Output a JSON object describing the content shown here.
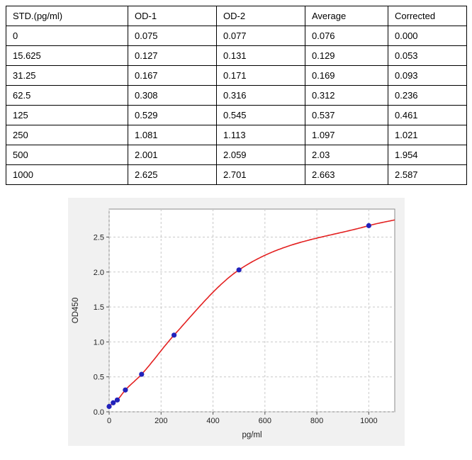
{
  "table": {
    "headers": [
      "STD.(pg/ml)",
      "OD-1",
      "OD-2",
      "Average",
      "Corrected"
    ],
    "rows": [
      [
        "0",
        "0.075",
        "0.077",
        "0.076",
        "0.000"
      ],
      [
        "15.625",
        "0.127",
        "0.131",
        "0.129",
        "0.053"
      ],
      [
        "31.25",
        "0.167",
        "0.171",
        "0.169",
        "0.093"
      ],
      [
        "62.5",
        "0.308",
        "0.316",
        "0.312",
        "0.236"
      ],
      [
        "125",
        "0.529",
        "0.545",
        "0.537",
        "0.461"
      ],
      [
        "250",
        "1.081",
        "1.113",
        "1.097",
        "1.021"
      ],
      [
        "500",
        "2.001",
        "2.059",
        "2.03",
        "1.954"
      ],
      [
        "1000",
        "2.625",
        "2.701",
        "2.663",
        "2.587"
      ]
    ]
  },
  "chart_data": {
    "type": "scatter",
    "title": "",
    "xlabel": "pg/ml",
    "ylabel": "OD450",
    "x": [
      0,
      15.625,
      31.25,
      62.5,
      125,
      250,
      500,
      1000
    ],
    "y": [
      0.076,
      0.129,
      0.169,
      0.312,
      0.537,
      1.097,
      2.03,
      2.663
    ],
    "fit": "smooth sigmoid curve through points",
    "xlim": [
      0,
      1100
    ],
    "ylim": [
      0,
      2.9
    ],
    "xticks": [
      0,
      200,
      400,
      600,
      800,
      1000
    ],
    "yticks": [
      0,
      0.5,
      1,
      1.5,
      2,
      2.5
    ],
    "grid": true,
    "legend": "none",
    "colors": {
      "point": "#2222bb",
      "line": "#e32020",
      "grid": "#c9c9c9",
      "figure_bg": "#f1f1f1",
      "plot_bg": "#ffffff",
      "plot_border": "#8a8a8a",
      "text": "#222222"
    }
  }
}
